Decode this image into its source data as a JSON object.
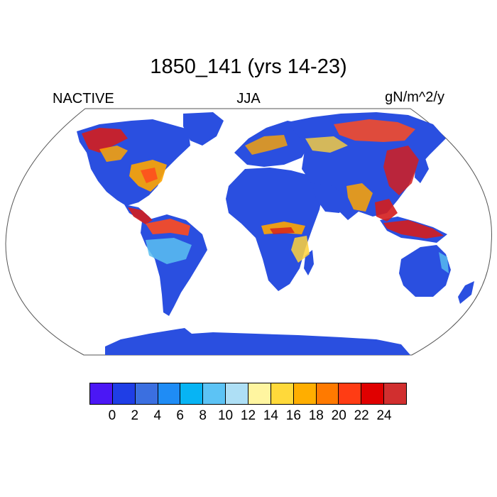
{
  "title": "1850_141 (yrs 14-23)",
  "left_label": "NACTIVE",
  "center_label": "JJA",
  "right_label": "gN/m^2/y",
  "map": {
    "projection": "Robinson",
    "ocean_color": "#ffffff",
    "land_base_color": "#2a4fe0",
    "hotspot_colors": [
      "#ffd23a",
      "#ffa500",
      "#ff4a1e",
      "#d41d1d",
      "#5ac0f0"
    ]
  },
  "colorbar": {
    "colors": [
      "#4b17f5",
      "#1f3ee6",
      "#3b6fe0",
      "#1f8cf5",
      "#07b4f4",
      "#5cc3f5",
      "#aedff5",
      "#fff5a0",
      "#ffd93a",
      "#ffae00",
      "#ff7a00",
      "#ff3c14",
      "#e00000",
      "#d12f2f"
    ],
    "tick_labels": [
      "0",
      "2",
      "4",
      "6",
      "8",
      "10",
      "12",
      "14",
      "16",
      "18",
      "20",
      "22",
      "24"
    ]
  }
}
